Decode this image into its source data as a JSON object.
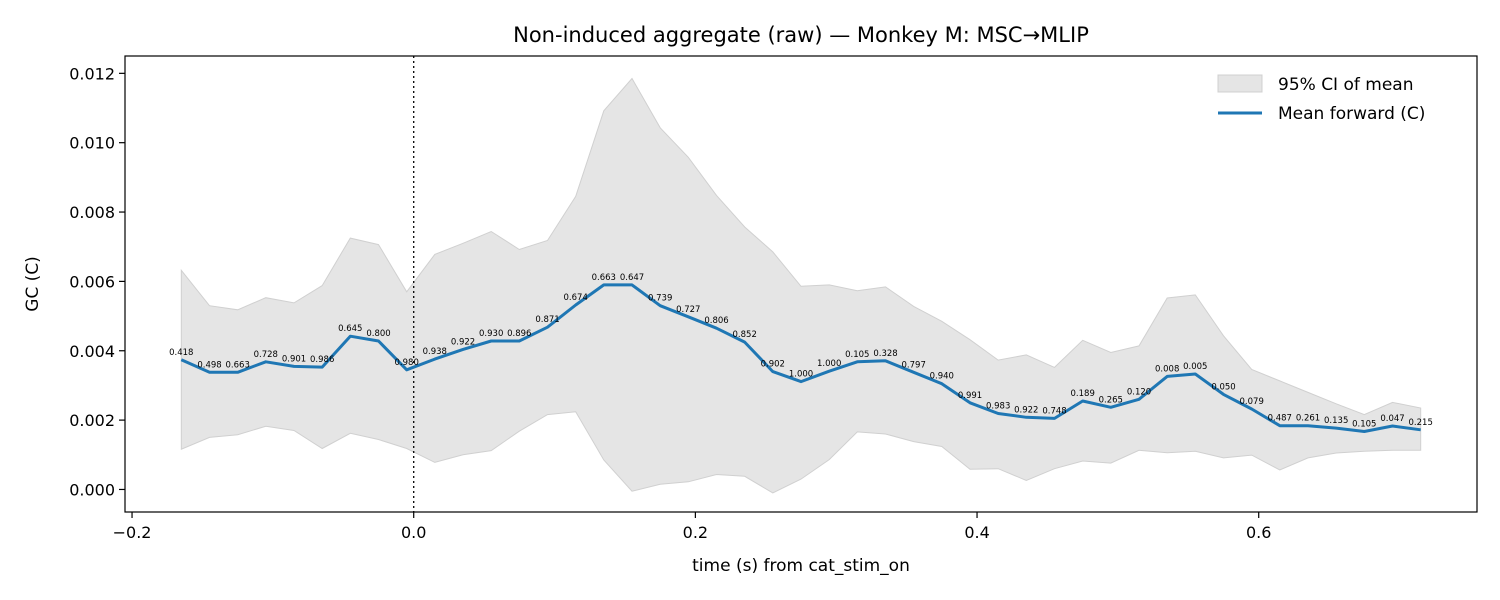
{
  "chart_data": {
    "type": "line",
    "title": "Non-induced aggregate (raw) — Monkey M: MSC→MLIP",
    "xlabel": "time (s) from cat_stim_on",
    "ylabel": "GC (C)",
    "xlim": [
      -0.205,
      0.755
    ],
    "ylim": [
      -0.00065,
      0.0125
    ],
    "xticks": [
      -0.2,
      0.0,
      0.2,
      0.4,
      0.6
    ],
    "xtick_labels": [
      "−0.2",
      "0.0",
      "0.2",
      "0.4",
      "0.6"
    ],
    "yticks": [
      0.0,
      0.002,
      0.004,
      0.006,
      0.008,
      0.01,
      0.012
    ],
    "ytick_labels": [
      "0.000",
      "0.002",
      "0.004",
      "0.006",
      "0.008",
      "0.010",
      "0.012"
    ],
    "vline_x": 0.0,
    "legend_position": "top-right",
    "grid": false,
    "colors": {
      "line": "#1f77b4",
      "band": "#e5e5e5",
      "band_edge": "#d0d0d0"
    },
    "x": [
      -0.165,
      -0.145,
      -0.125,
      -0.105,
      -0.085,
      -0.065,
      -0.045,
      -0.025,
      -0.005,
      0.015,
      0.035,
      0.055,
      0.075,
      0.095,
      0.115,
      0.135,
      0.155,
      0.175,
      0.195,
      0.215,
      0.235,
      0.255,
      0.275,
      0.295,
      0.315,
      0.335,
      0.355,
      0.375,
      0.395,
      0.415,
      0.435,
      0.455,
      0.475,
      0.495,
      0.515,
      0.535,
      0.555,
      0.575,
      0.595,
      0.615,
      0.635,
      0.655,
      0.675,
      0.695,
      0.715
    ],
    "series": [
      {
        "name": "Mean forward (C)",
        "values": [
          0.00374,
          0.00338,
          0.00338,
          0.00368,
          0.00355,
          0.00353,
          0.00442,
          0.00428,
          0.00345,
          0.00376,
          0.00404,
          0.00428,
          0.00428,
          0.00468,
          0.00532,
          0.0059,
          0.0059,
          0.0053,
          0.00498,
          0.00465,
          0.00425,
          0.0034,
          0.00311,
          0.00341,
          0.00368,
          0.00371,
          0.00338,
          0.00305,
          0.0025,
          0.00219,
          0.00208,
          0.00205,
          0.00255,
          0.00237,
          0.0026,
          0.00326,
          0.00333,
          0.00274,
          0.00232,
          0.00184,
          0.00184,
          0.00177,
          0.00167,
          0.00183,
          0.00172
        ]
      }
    ],
    "band": {
      "name": "95% CI of mean",
      "lower": [
        0.00116,
        0.0015,
        0.00158,
        0.00182,
        0.0017,
        0.00118,
        0.00162,
        0.00144,
        0.00118,
        0.00078,
        0.001,
        0.00112,
        0.00168,
        0.00216,
        0.00224,
        0.00085,
        -5e-05,
        0.00015,
        0.00022,
        0.00043,
        0.00038,
        -0.0001,
        0.0003,
        0.00086,
        0.00166,
        0.0016,
        0.00138,
        0.00124,
        0.00058,
        0.0006,
        0.00026,
        0.0006,
        0.00082,
        0.00076,
        0.00113,
        0.00106,
        0.0011,
        0.00091,
        0.00099,
        0.00056,
        0.00091,
        0.00105,
        0.0011,
        0.00113,
        0.00113
      ],
      "upper": [
        0.00632,
        0.0053,
        0.00518,
        0.00553,
        0.00538,
        0.00588,
        0.00725,
        0.00706,
        0.0057,
        0.00678,
        0.0071,
        0.00744,
        0.00692,
        0.00718,
        0.00845,
        0.01092,
        0.01185,
        0.01043,
        0.00958,
        0.00848,
        0.00757,
        0.00685,
        0.00586,
        0.0059,
        0.00573,
        0.00584,
        0.00528,
        0.00485,
        0.00432,
        0.00373,
        0.00388,
        0.00352,
        0.0043,
        0.00395,
        0.00414,
        0.00552,
        0.00561,
        0.00443,
        0.00346,
        0.00313,
        0.0028,
        0.00247,
        0.00216,
        0.00251,
        0.00235
      ]
    },
    "point_labels": [
      "0.418",
      "0.498",
      "0.663",
      "0.728",
      "0.901",
      "0.986",
      "0.645",
      "0.800",
      "0.980",
      "0.938",
      "0.922",
      "0.930",
      "0.896",
      "0.871",
      "0.674",
      "0.663",
      "0.647",
      "0.739",
      "0.727",
      "0.806",
      "0.852",
      "0.902",
      "1.000",
      "1.000",
      "0.105",
      "0.328",
      "0.797",
      "0.940",
      "0.991",
      "0.983",
      "0.922",
      "0.748",
      "0.189",
      "0.265",
      "0.120",
      "0.008",
      "0.005",
      "0.050",
      "0.079",
      "0.487",
      "0.261",
      "0.135",
      "0.105",
      "0.047",
      "0.215"
    ]
  }
}
